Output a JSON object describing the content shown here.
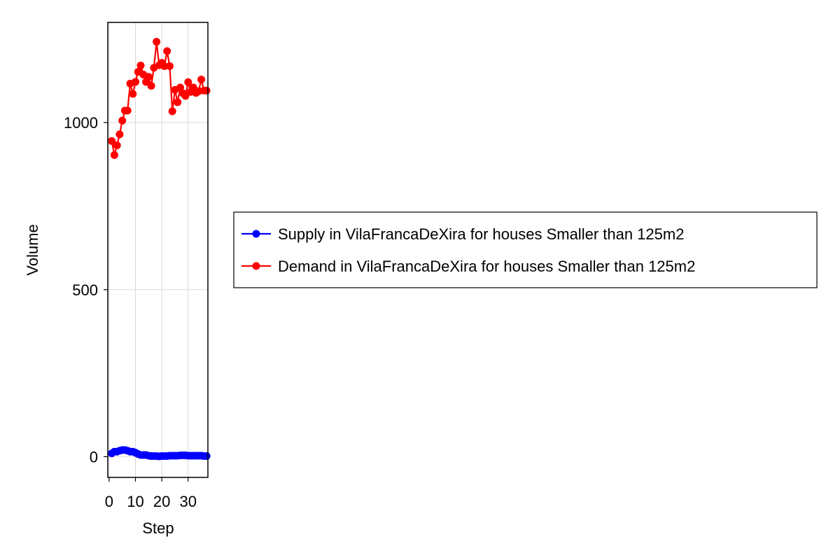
{
  "chart_data": {
    "type": "line",
    "title": "",
    "xlabel": "Step",
    "ylabel": "Volume",
    "xlim": [
      -0.5,
      37.5
    ],
    "ylim": [
      -62,
      1300
    ],
    "xticks": [
      0,
      10,
      20,
      30
    ],
    "yticks": [
      0,
      500,
      1000
    ],
    "grid": true,
    "legend_position": "right",
    "x": [
      1,
      2,
      3,
      4,
      5,
      6,
      7,
      8,
      9,
      10,
      11,
      12,
      13,
      14,
      15,
      16,
      17,
      18,
      19,
      20,
      21,
      22,
      23,
      24,
      25,
      26,
      27,
      28,
      29,
      30,
      31,
      32,
      33,
      34,
      35,
      36,
      37
    ],
    "series": [
      {
        "name": "Supply in VilaFrancaDeXira for houses Smaller than 125m2",
        "color": "#0000ff",
        "values": [
          10,
          15,
          15,
          18,
          20,
          20,
          18,
          15,
          15,
          12,
          8,
          5,
          5,
          5,
          3,
          2,
          2,
          2,
          1,
          2,
          2,
          2,
          3,
          3,
          3,
          3,
          4,
          4,
          4,
          3,
          3,
          3,
          3,
          3,
          3,
          2,
          2
        ]
      },
      {
        "name": "Demand in VilaFrancaDeXira for houses Smaller than 125m2",
        "color": "#ff0000",
        "values": [
          945,
          903,
          932,
          965,
          1006,
          1036,
          1036,
          1117,
          1086,
          1122,
          1152,
          1171,
          1144,
          1122,
          1137,
          1110,
          1164,
          1242,
          1172,
          1179,
          1169,
          1214,
          1169,
          1034,
          1098,
          1061,
          1105,
          1088,
          1080,
          1121,
          1092,
          1105,
          1089,
          1094,
          1129,
          1096,
          1096
        ]
      }
    ]
  }
}
